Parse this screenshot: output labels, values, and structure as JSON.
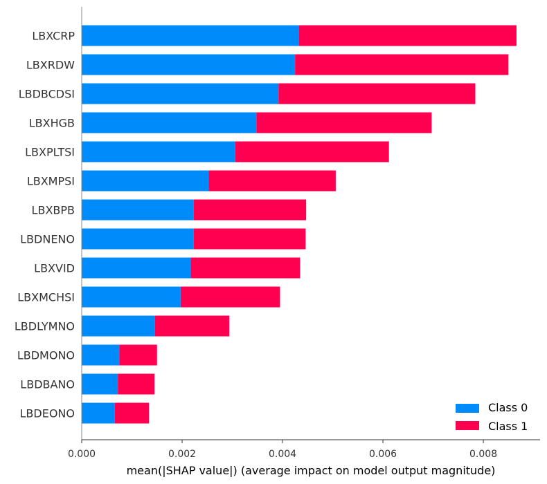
{
  "chart_data": {
    "type": "bar",
    "orientation": "horizontal",
    "stacked": true,
    "title": "",
    "xlabel": "mean(|SHAP value|) (average impact on model output magnitude)",
    "ylabel": "",
    "xlim": [
      0,
      0.00913
    ],
    "xticks": [
      0.0,
      0.002,
      0.004,
      0.006,
      0.008
    ],
    "xtick_labels": [
      "0.000",
      "0.002",
      "0.004",
      "0.006",
      "0.008"
    ],
    "grid": false,
    "legend_position": "bottom-right",
    "categories": [
      "LBXCRP",
      "LBXRDW",
      "LBDBCDSI",
      "LBXHGB",
      "LBXPLTSI",
      "LBXMPSI",
      "LBXBPB",
      "LBDNENO",
      "LBXVID",
      "LBXMCHSI",
      "LBDLYMNO",
      "LBDMONO",
      "LBDBANO",
      "LBDEONO"
    ],
    "series": [
      {
        "name": "Class 0",
        "color": "#008bfb",
        "values": [
          0.00433,
          0.00425,
          0.00392,
          0.00348,
          0.00306,
          0.00253,
          0.00223,
          0.00223,
          0.00217,
          0.00197,
          0.00146,
          0.00075,
          0.00072,
          0.00066
        ]
      },
      {
        "name": "Class 1",
        "color": "#ff0051",
        "values": [
          0.00433,
          0.00425,
          0.00392,
          0.00349,
          0.00306,
          0.00253,
          0.00224,
          0.00223,
          0.00218,
          0.00198,
          0.00148,
          0.00075,
          0.00073,
          0.00068
        ]
      }
    ]
  }
}
